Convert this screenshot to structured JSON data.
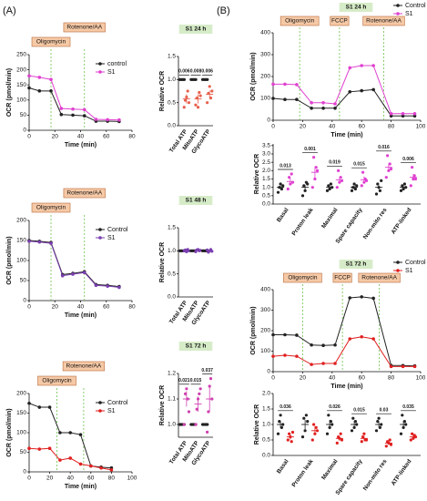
{
  "panel_labels": [
    "(A)",
    "(B)"
  ],
  "chart_data": [
    {
      "type": "line",
      "xlabel": "Time (min)",
      "ylabel": "OCR (pmol/min)",
      "legend": "upper right",
      "x": [
        0,
        8,
        17,
        25,
        34,
        43,
        52,
        61,
        70
      ],
      "xlim": [
        0,
        80
      ],
      "xticks": [
        0,
        20,
        40,
        60,
        80
      ],
      "ylim": [
        0,
        250
      ],
      "yticks": [
        0,
        50,
        100,
        150,
        200,
        250
      ],
      "annotations": [
        {
          "text": "Oligomycin",
          "x": 17
        },
        {
          "text": "Rotenone/AA",
          "x": 43
        }
      ],
      "series": [
        {
          "name": "control",
          "color": "#222222",
          "values": [
            140,
            130,
            130,
            52,
            50,
            48,
            30,
            30,
            29
          ]
        },
        {
          "name": "S1",
          "color": "#e040d0",
          "values": [
            180,
            175,
            168,
            72,
            70,
            68,
            36,
            35,
            34
          ]
        }
      ]
    },
    {
      "type": "dot",
      "title": "S1 24 h",
      "ylabel": "Relative OCR",
      "categories": [
        "Total ATP",
        "MitoATP",
        "GlycoATP"
      ],
      "ylim": [
        0,
        1.5
      ],
      "yticks": [
        {
          "value": 0,
          "label": "0.0"
        },
        0.5,
        {
          "value": 1,
          "label": "1.0"
        },
        1.5
      ],
      "pvalues": [
        "0.006",
        "0.008",
        "0.006"
      ],
      "series": [
        {
          "color": "#222222",
          "values": [
            1,
            1,
            1
          ],
          "errors": [
            0,
            0,
            0
          ],
          "points": [
            [
              1,
              1,
              1,
              1,
              1
            ],
            [
              1,
              1,
              1,
              1,
              1
            ],
            [
              1,
              1,
              1,
              1,
              1
            ]
          ]
        },
        {
          "color": "#e8604c",
          "values": [
            0.58,
            0.58,
            0.68
          ],
          "errors": [
            0.1,
            0.1,
            0.08
          ],
          "points": [
            [
              0.4,
              0.55,
              0.62,
              0.75,
              0.5
            ],
            [
              0.45,
              0.6,
              0.4,
              0.72,
              0.65
            ],
            [
              0.5,
              0.7,
              0.85,
              0.6,
              0.75
            ]
          ]
        }
      ]
    },
    {
      "type": "line",
      "xlabel": "Time (min)",
      "ylabel": "OCR (pmol/min)",
      "legend": "upper right",
      "x": [
        0,
        8,
        17,
        26,
        34,
        43,
        52,
        61,
        70
      ],
      "xlim": [
        0,
        80
      ],
      "xticks": [
        0,
        20,
        40,
        60,
        80
      ],
      "ylim": [
        0,
        200
      ],
      "yticks": [
        0,
        50,
        100,
        150,
        200
      ],
      "annotations": [
        {
          "text": "Oligomycin",
          "x": 17
        },
        {
          "text": "Rotenone/AA",
          "x": 43
        }
      ],
      "series": [
        {
          "name": "Control",
          "color": "#222222",
          "values": [
            150,
            148,
            145,
            65,
            68,
            72,
            40,
            38,
            35
          ]
        },
        {
          "name": "S1",
          "color": "#7b3fb0",
          "values": [
            148,
            146,
            143,
            62,
            66,
            70,
            38,
            36,
            33
          ]
        }
      ]
    },
    {
      "type": "dot",
      "title": "S1 48 h",
      "ylabel": "Relative OCR",
      "categories": [
        "Total  ATP",
        "MitoATP",
        "GlycoATP"
      ],
      "ylim": [
        0,
        1.5
      ],
      "yticks": [
        {
          "value": 0,
          "label": "0.0"
        },
        0.5,
        {
          "value": 1,
          "label": "1.0"
        },
        1.5
      ],
      "series": [
        {
          "color": "#222222",
          "values": [
            1,
            1,
            1
          ],
          "errors": [
            0,
            0,
            0
          ],
          "points": [
            [
              1,
              1,
              1,
              1,
              1
            ],
            [
              1,
              1,
              1,
              1,
              1
            ],
            [
              1,
              1,
              1,
              1,
              1
            ]
          ]
        },
        {
          "color": "#7b3fb0",
          "values": [
            1.01,
            1.01,
            1.0
          ],
          "errors": [
            0.02,
            0.02,
            0.02
          ],
          "points": [
            [
              1,
              1.02,
              0.98,
              1.03,
              1.0
            ],
            [
              0.98,
              1.02,
              1.03,
              1.0,
              1.01
            ],
            [
              1.02,
              0.97,
              1.0,
              1.03,
              0.99
            ]
          ]
        }
      ]
    },
    {
      "type": "line",
      "xlabel": "Time (min)",
      "ylabel": "OCR (pmol/min)",
      "legend": "upper right",
      "x": [
        0,
        10,
        20,
        30,
        40,
        50,
        60,
        70,
        80
      ],
      "xlim": [
        0,
        100
      ],
      "xticks": [
        0,
        20,
        40,
        60,
        80,
        100
      ],
      "ylim": [
        0,
        200
      ],
      "yticks": [
        0,
        50,
        100,
        150,
        200
      ],
      "annotations": [
        {
          "text": "Oligomycin",
          "x": 27
        },
        {
          "text": "Rotenone/AA",
          "x": 53
        }
      ],
      "series": [
        {
          "name": "Control",
          "color": "#222222",
          "values": [
            175,
            165,
            165,
            100,
            100,
            95,
            15,
            12,
            10
          ]
        },
        {
          "name": "S1",
          "color": "#e02020",
          "values": [
            60,
            58,
            60,
            30,
            35,
            20,
            15,
            10,
            5
          ]
        }
      ]
    },
    {
      "type": "dot",
      "title": "S1 72 h",
      "ylabel": "Relative OCR",
      "categories": [
        "Total  ATP",
        "MitoATP",
        "GlycoATP"
      ],
      "ylim": [
        0.95,
        1.2
      ],
      "yticks": [
        {
          "value": 1,
          "label": "1.0"
        },
        1.1,
        1.2
      ],
      "pvalues": [
        "0.021",
        "0.015",
        "0.037"
      ],
      "series": [
        {
          "color": "#222222",
          "values": [
            1,
            1,
            1
          ],
          "errors": [
            0,
            0,
            0
          ],
          "points": [
            [
              1,
              1,
              1,
              1,
              1
            ],
            [
              1,
              1,
              1,
              1,
              1
            ],
            [
              1,
              1,
              1,
              1,
              1
            ]
          ]
        },
        {
          "color": "#d040b0",
          "values": [
            1.1,
            1.08,
            1.1
          ],
          "errors": [
            0.03,
            0.03,
            0.05
          ],
          "points": [
            [
              1.0,
              1.12,
              1.14,
              1.1,
              1.05
            ],
            [
              1.0,
              1.06,
              1.1,
              1.12,
              1.14
            ],
            [
              0.97,
              1.05,
              1.15,
              1.18,
              1.1
            ]
          ]
        }
      ]
    },
    {
      "type": "line",
      "title": "S1 24 h",
      "xlabel": "Time (min)",
      "ylabel": "OCR (pmol/min)",
      "legend": "upper right",
      "x": [
        0,
        8,
        16,
        26,
        34,
        42,
        52,
        60,
        68,
        80,
        88,
        96
      ],
      "xlim": [
        0,
        100
      ],
      "xticks": [
        0,
        20,
        40,
        60,
        80,
        100
      ],
      "ylim": [
        0,
        400
      ],
      "yticks": [
        0,
        100,
        200,
        300,
        400
      ],
      "annotations": [
        {
          "text": "Oligomycin",
          "x": 18
        },
        {
          "text": "FCCP",
          "x": 45
        },
        {
          "text": "Rotenone/AA",
          "x": 75
        }
      ],
      "series": [
        {
          "name": "Control",
          "color": "#222222",
          "values": [
            100,
            95,
            95,
            55,
            55,
            55,
            130,
            135,
            140,
            20,
            20,
            20
          ]
        },
        {
          "name": "S1",
          "color": "#e040d0",
          "values": [
            165,
            165,
            163,
            80,
            80,
            75,
            240,
            250,
            250,
            30,
            30,
            30
          ]
        }
      ]
    },
    {
      "type": "dot",
      "ylabel": "Relative OCR",
      "categories": [
        "Basal",
        "Proton leak",
        "Maximal",
        "Spare capacity",
        "Non-mito res",
        "ATP-linked"
      ],
      "ylim": [
        0,
        3.6
      ],
      "yticks": [
        {
          "value": 0,
          "label": "0.0"
        },
        0.5,
        {
          "value": 1,
          "label": "1.0"
        },
        1.5,
        {
          "value": 2,
          "label": "2.0"
        },
        2.5,
        {
          "value": 3,
          "label": "3.0"
        },
        3.5
      ],
      "pvalues": [
        "0.013",
        "0.001",
        "0.019",
        "0.015",
        "0.016",
        "0.006"
      ],
      "series": [
        {
          "color": "#222222",
          "values": [
            1,
            1,
            1,
            1,
            1,
            1
          ],
          "errors": [
            0.1,
            0.15,
            0.1,
            0.1,
            0.12,
            0.1
          ],
          "points": [
            [
              0.7,
              1.0,
              1.2,
              0.9,
              1.1
            ],
            [
              0.5,
              1.1,
              0.8,
              1.3,
              1.2
            ],
            [
              0.8,
              1.1,
              0.9,
              1.2,
              1.0
            ],
            [
              0.8,
              1.0,
              1.2,
              0.9,
              1.1
            ],
            [
              0.6,
              1.2,
              1.0,
              0.8,
              1.4
            ],
            [
              0.8,
              1.1,
              0.9,
              1.2,
              1.0
            ]
          ]
        },
        {
          "color": "#e040d0",
          "values": [
            1.35,
            1.9,
            1.45,
            1.45,
            2.2,
            1.6
          ],
          "errors": [
            0.2,
            0.35,
            0.2,
            0.2,
            0.25,
            0.2
          ],
          "points": [
            [
              0.9,
              1.6,
              1.2,
              1.8,
              1.3
            ],
            [
              1.0,
              2.8,
              1.5,
              2.2,
              2.0
            ],
            [
              1.0,
              2.0,
              1.3,
              1.6,
              1.4
            ],
            [
              1.1,
              1.9,
              1.3,
              1.5,
              1.4
            ],
            [
              1.6,
              2.9,
              2.0,
              2.4,
              2.1
            ],
            [
              1.1,
              2.2,
              1.5,
              1.7,
              1.5
            ]
          ]
        }
      ]
    },
    {
      "type": "line",
      "title": "S1 72 h",
      "xlabel": "Time (min)",
      "ylabel": "OCR (pmol/min)",
      "legend": "upper right",
      "x": [
        0,
        8,
        16,
        26,
        34,
        42,
        52,
        60,
        68,
        80,
        88,
        96
      ],
      "xlim": [
        0,
        100
      ],
      "xticks": [
        0,
        20,
        40,
        60,
        80,
        100
      ],
      "ylim": [
        0,
        400
      ],
      "yticks": [
        0,
        100,
        200,
        300,
        400
      ],
      "annotations": [
        {
          "text": "Oligomycin",
          "x": 20
        },
        {
          "text": "FCCP",
          "x": 47
        },
        {
          "text": "Rotenone/AA",
          "x": 72
        }
      ],
      "series": [
        {
          "name": "Control",
          "color": "#222222",
          "values": [
            180,
            180,
            178,
            130,
            128,
            130,
            360,
            365,
            358,
            30,
            30,
            28
          ]
        },
        {
          "name": "S1",
          "color": "#e02020",
          "values": [
            75,
            80,
            75,
            35,
            40,
            40,
            160,
            170,
            160,
            25,
            25,
            25
          ]
        }
      ]
    },
    {
      "type": "dot",
      "ylabel": "Relative OCR",
      "categories": [
        "Basal",
        "Proton leak",
        "Maximal",
        "Spare capacity",
        "Non-mito res",
        "ATP-linked"
      ],
      "ylim": [
        0,
        2
      ],
      "yticks": [
        {
          "value": 0,
          "label": "0.0"
        },
        0.5,
        {
          "value": 1,
          "label": "1.0"
        },
        1.5,
        {
          "value": 2,
          "label": "2.0"
        }
      ],
      "pvalues": [
        "0.036",
        null,
        "0.026",
        "0.015",
        "0.03",
        "0.035"
      ],
      "series": [
        {
          "color": "#222222",
          "values": [
            1,
            1,
            1,
            1,
            1,
            1
          ],
          "errors": [
            0.12,
            0.15,
            0.15,
            0.12,
            0.1,
            0.12
          ],
          "points": [
            [
              0.7,
              1.1,
              1.3,
              0.9,
              1.0
            ],
            [
              0.6,
              1.2,
              0.8,
              1.3,
              1.1
            ],
            [
              0.7,
              1.3,
              0.9,
              1.1,
              1.0
            ],
            [
              0.8,
              1.2,
              0.9,
              1.1,
              1.0
            ],
            [
              0.8,
              1.1,
              1.2,
              0.9,
              1.0
            ],
            [
              0.7,
              1.3,
              0.9,
              1.1,
              1.0
            ]
          ]
        },
        {
          "color": "#e02020",
          "values": [
            0.6,
            0.8,
            0.55,
            0.55,
            0.4,
            0.6
          ],
          "errors": [
            0.08,
            0.15,
            0.08,
            0.08,
            0.06,
            0.08
          ],
          "points": [
            [
              0.5,
              0.7,
              0.6,
              0.45,
              0.75
            ],
            [
              0.5,
              1.0,
              0.7,
              0.9,
              0.8
            ],
            [
              0.4,
              0.6,
              0.55,
              0.7,
              0.5
            ],
            [
              0.45,
              0.6,
              0.7,
              0.5,
              0.5
            ],
            [
              0.3,
              0.45,
              0.4,
              0.5,
              0.35
            ],
            [
              0.5,
              0.7,
              0.55,
              0.65,
              0.6
            ]
          ]
        }
      ]
    }
  ]
}
